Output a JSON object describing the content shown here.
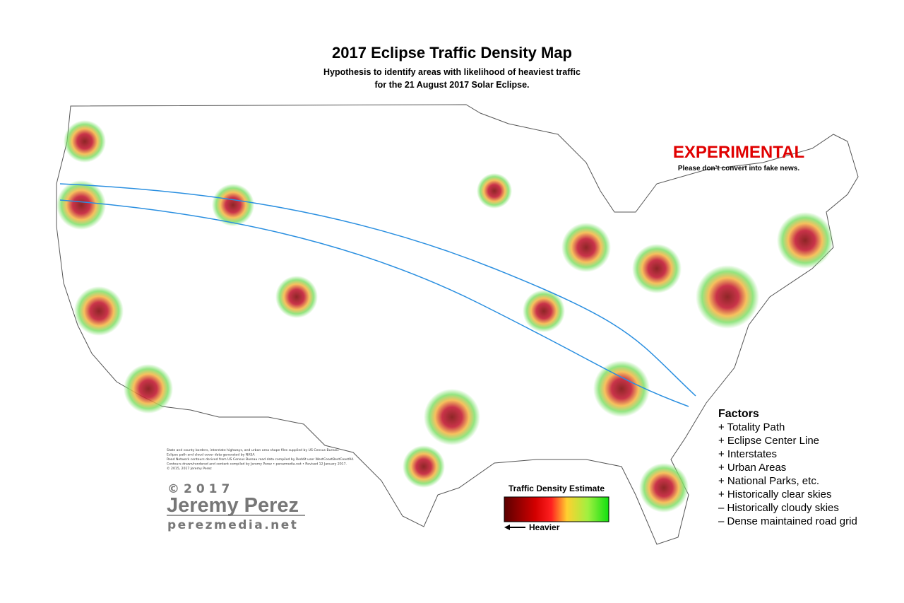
{
  "header": {
    "title": "2017 Eclipse Traffic Density Map",
    "subtitle_lines": [
      "Hypothesis to identify areas with likelihood of heaviest traffic",
      "for the 21 August 2017 Solar Eclipse."
    ]
  },
  "warning": {
    "title": "EXPERIMENTAL",
    "note": "Please don’t convert into fake news."
  },
  "factors": {
    "title": "Factors",
    "items": [
      "+ Totality Path",
      "+ Eclipse Center Line",
      "+ Interstates",
      "+ Urban Areas",
      "+ National Parks, etc.",
      "+ Historically clear skies",
      "– Historically cloudy skies",
      "– Dense maintained road grid"
    ]
  },
  "credits": [
    "State and county borders, interstate highways, and urban area shape files supplied by US Census Bureau.",
    "Eclipse path and cloud cover data generated by NASA",
    "Road Network contours derived from US Census Bureau road data compiled by Reddit user WestCoastBestCoast94.",
    "Contours drawn/rendered and content compiled by Jeremy Perez • perezmedia.net • Revised 12 January 2017.",
    "© 2015, 2017 Jeremy Perez"
  ],
  "signature": {
    "copyright": "©2017",
    "name": "Jeremy Perez",
    "site": "perezmedia.net"
  },
  "legend": {
    "title": "Traffic Density Estimate",
    "direction": "Heavier"
  }
}
